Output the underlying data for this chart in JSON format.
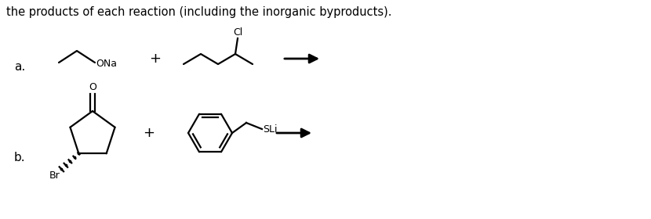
{
  "background_color": "#ffffff",
  "text_color": "#000000",
  "title_text": "the products of each reaction (including the inorganic byproducts).",
  "title_fontsize": 10.5,
  "title_color": "#000000",
  "label_a": "a.",
  "label_b": "b.",
  "label_fontsize": 11,
  "plus_fontsize": 13,
  "line_color": "#000000",
  "line_width": 1.6,
  "ONa_fontsize": 9,
  "Cl_fontsize": 9,
  "SLi_fontsize": 9,
  "Br_fontsize": 9,
  "O_fontsize": 9
}
